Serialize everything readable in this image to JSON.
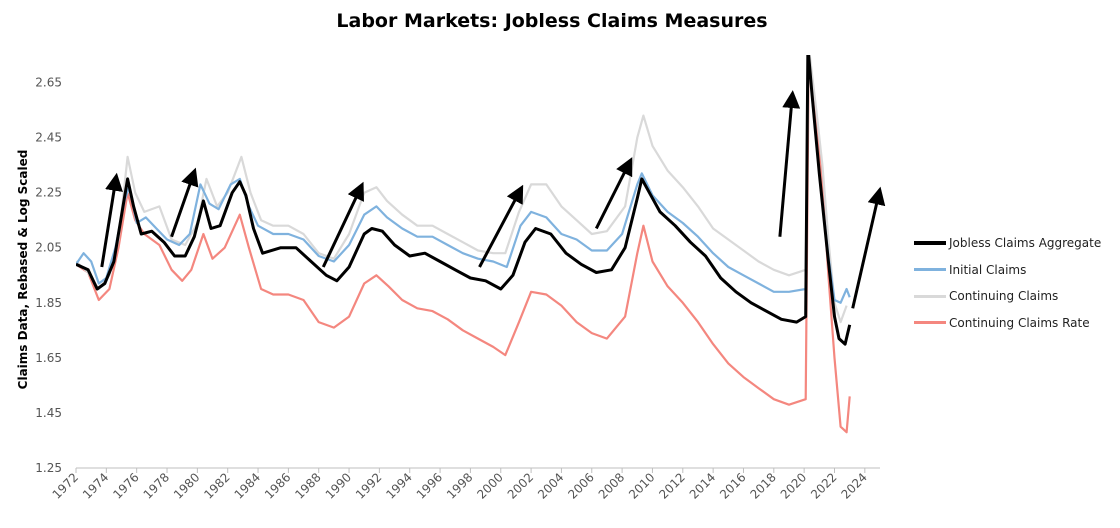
{
  "chart_data": {
    "type": "line",
    "title": "Labor Markets: Jobless Claims Measures",
    "xlabel": "",
    "ylabel": "Claims Data, Rebased & Log Scaled",
    "ylim": [
      1.25,
      2.75
    ],
    "yticks": [
      "1.25",
      "1.45",
      "1.65",
      "1.85",
      "2.05",
      "2.25",
      "2.45",
      "2.65"
    ],
    "xlim": [
      1972,
      2025
    ],
    "xticks": [
      "1972",
      "1974",
      "1976",
      "1978",
      "1980",
      "1982",
      "1984",
      "1986",
      "1988",
      "1990",
      "1992",
      "1994",
      "1996",
      "1998",
      "2000",
      "2002",
      "2004",
      "2006",
      "2008",
      "2010",
      "2012",
      "2014",
      "2016",
      "2018",
      "2020",
      "2022",
      "2024"
    ],
    "grid": false,
    "legend_position": "right",
    "series": [
      {
        "name": "Jobless Claims Aggregate",
        "color": "#000000",
        "width": 3,
        "points": [
          [
            1972.0,
            1.99
          ],
          [
            1972.8,
            1.97
          ],
          [
            1973.4,
            1.9
          ],
          [
            1973.9,
            1.92
          ],
          [
            1974.5,
            2.0
          ],
          [
            1975.1,
            2.2
          ],
          [
            1975.4,
            2.3
          ],
          [
            1975.8,
            2.2
          ],
          [
            1976.3,
            2.1
          ],
          [
            1977.0,
            2.11
          ],
          [
            1977.8,
            2.07
          ],
          [
            1978.5,
            2.02
          ],
          [
            1979.2,
            2.02
          ],
          [
            1979.8,
            2.09
          ],
          [
            1980.4,
            2.22
          ],
          [
            1980.9,
            2.12
          ],
          [
            1981.5,
            2.13
          ],
          [
            1982.3,
            2.25
          ],
          [
            1982.8,
            2.29
          ],
          [
            1983.2,
            2.24
          ],
          [
            1983.7,
            2.12
          ],
          [
            1984.3,
            2.03
          ],
          [
            1985.5,
            2.05
          ],
          [
            1986.5,
            2.05
          ],
          [
            1987.5,
            2.0
          ],
          [
            1988.5,
            1.95
          ],
          [
            1989.2,
            1.93
          ],
          [
            1990.0,
            1.98
          ],
          [
            1991.0,
            2.1
          ],
          [
            1991.5,
            2.12
          ],
          [
            1992.2,
            2.11
          ],
          [
            1993.0,
            2.06
          ],
          [
            1994.0,
            2.02
          ],
          [
            1995.0,
            2.03
          ],
          [
            1996.0,
            2.0
          ],
          [
            1997.0,
            1.97
          ],
          [
            1998.0,
            1.94
          ],
          [
            1999.0,
            1.93
          ],
          [
            2000.0,
            1.9
          ],
          [
            2000.8,
            1.95
          ],
          [
            2001.6,
            2.07
          ],
          [
            2002.3,
            2.12
          ],
          [
            2003.3,
            2.1
          ],
          [
            2004.3,
            2.03
          ],
          [
            2005.3,
            1.99
          ],
          [
            2006.3,
            1.96
          ],
          [
            2007.3,
            1.97
          ],
          [
            2008.2,
            2.05
          ],
          [
            2009.0,
            2.23
          ],
          [
            2009.3,
            2.3
          ],
          [
            2009.8,
            2.25
          ],
          [
            2010.5,
            2.18
          ],
          [
            2011.5,
            2.13
          ],
          [
            2012.5,
            2.07
          ],
          [
            2013.5,
            2.02
          ],
          [
            2014.5,
            1.94
          ],
          [
            2015.5,
            1.89
          ],
          [
            2016.5,
            1.85
          ],
          [
            2017.5,
            1.82
          ],
          [
            2018.5,
            1.79
          ],
          [
            2019.5,
            1.78
          ],
          [
            2020.1,
            1.8
          ],
          [
            2020.25,
            2.78
          ],
          [
            2020.5,
            2.62
          ],
          [
            2021.0,
            2.32
          ],
          [
            2021.6,
            2.0
          ],
          [
            2022.0,
            1.8
          ],
          [
            2022.3,
            1.72
          ],
          [
            2022.7,
            1.7
          ],
          [
            2023.0,
            1.77
          ]
        ]
      },
      {
        "name": "Initial Claims",
        "color": "#7fb2de",
        "width": 2.2,
        "points": [
          [
            1972.0,
            1.99
          ],
          [
            1972.5,
            2.03
          ],
          [
            1973.0,
            2.0
          ],
          [
            1973.5,
            1.92
          ],
          [
            1974.0,
            1.94
          ],
          [
            1974.6,
            2.05
          ],
          [
            1975.2,
            2.22
          ],
          [
            1975.5,
            2.27
          ],
          [
            1976.0,
            2.14
          ],
          [
            1976.6,
            2.16
          ],
          [
            1977.3,
            2.12
          ],
          [
            1978.0,
            2.08
          ],
          [
            1978.8,
            2.06
          ],
          [
            1979.5,
            2.1
          ],
          [
            1980.2,
            2.28
          ],
          [
            1980.8,
            2.21
          ],
          [
            1981.4,
            2.19
          ],
          [
            1982.2,
            2.28
          ],
          [
            1982.8,
            2.3
          ],
          [
            1983.4,
            2.2
          ],
          [
            1984.0,
            2.13
          ],
          [
            1985.0,
            2.1
          ],
          [
            1986.0,
            2.1
          ],
          [
            1987.0,
            2.08
          ],
          [
            1988.0,
            2.02
          ],
          [
            1989.0,
            2.0
          ],
          [
            1990.0,
            2.06
          ],
          [
            1991.0,
            2.17
          ],
          [
            1991.8,
            2.2
          ],
          [
            1992.5,
            2.16
          ],
          [
            1993.5,
            2.12
          ],
          [
            1994.5,
            2.09
          ],
          [
            1995.5,
            2.09
          ],
          [
            1996.5,
            2.06
          ],
          [
            1997.5,
            2.03
          ],
          [
            1998.5,
            2.01
          ],
          [
            1999.5,
            2.0
          ],
          [
            2000.4,
            1.98
          ],
          [
            2001.3,
            2.13
          ],
          [
            2002.0,
            2.18
          ],
          [
            2003.0,
            2.16
          ],
          [
            2004.0,
            2.1
          ],
          [
            2005.0,
            2.08
          ],
          [
            2006.0,
            2.04
          ],
          [
            2007.0,
            2.04
          ],
          [
            2008.0,
            2.1
          ],
          [
            2009.0,
            2.28
          ],
          [
            2009.3,
            2.32
          ],
          [
            2010.0,
            2.24
          ],
          [
            2011.0,
            2.18
          ],
          [
            2012.0,
            2.14
          ],
          [
            2013.0,
            2.09
          ],
          [
            2014.0,
            2.03
          ],
          [
            2015.0,
            1.98
          ],
          [
            2016.0,
            1.95
          ],
          [
            2017.0,
            1.92
          ],
          [
            2018.0,
            1.89
          ],
          [
            2019.0,
            1.89
          ],
          [
            2020.1,
            1.9
          ],
          [
            2020.25,
            2.78
          ],
          [
            2020.6,
            2.55
          ],
          [
            2021.0,
            2.32
          ],
          [
            2021.6,
            2.02
          ],
          [
            2022.0,
            1.86
          ],
          [
            2022.4,
            1.85
          ],
          [
            2022.8,
            1.9
          ],
          [
            2023.0,
            1.87
          ]
        ]
      },
      {
        "name": "Continuing Claims",
        "color": "#d9d9d9",
        "width": 2.2,
        "points": [
          [
            1972.0,
            2.0
          ],
          [
            1972.8,
            1.96
          ],
          [
            1973.5,
            1.9
          ],
          [
            1974.2,
            1.95
          ],
          [
            1974.8,
            2.08
          ],
          [
            1975.4,
            2.38
          ],
          [
            1975.9,
            2.25
          ],
          [
            1976.5,
            2.18
          ],
          [
            1977.5,
            2.2
          ],
          [
            1978.3,
            2.08
          ],
          [
            1979.2,
            2.06
          ],
          [
            1980.0,
            2.14
          ],
          [
            1980.6,
            2.3
          ],
          [
            1981.3,
            2.2
          ],
          [
            1982.0,
            2.25
          ],
          [
            1982.9,
            2.38
          ],
          [
            1983.5,
            2.25
          ],
          [
            1984.2,
            2.15
          ],
          [
            1985.0,
            2.13
          ],
          [
            1986.0,
            2.13
          ],
          [
            1987.0,
            2.1
          ],
          [
            1988.0,
            2.03
          ],
          [
            1989.0,
            2.01
          ],
          [
            1990.0,
            2.1
          ],
          [
            1991.0,
            2.25
          ],
          [
            1991.8,
            2.27
          ],
          [
            1992.5,
            2.22
          ],
          [
            1993.5,
            2.17
          ],
          [
            1994.5,
            2.13
          ],
          [
            1995.5,
            2.13
          ],
          [
            1996.5,
            2.1
          ],
          [
            1997.5,
            2.07
          ],
          [
            1998.5,
            2.04
          ],
          [
            1999.5,
            2.03
          ],
          [
            2000.3,
            2.03
          ],
          [
            2001.2,
            2.18
          ],
          [
            2002.0,
            2.28
          ],
          [
            2003.0,
            2.28
          ],
          [
            2004.0,
            2.2
          ],
          [
            2005.0,
            2.15
          ],
          [
            2006.0,
            2.1
          ],
          [
            2007.0,
            2.11
          ],
          [
            2008.2,
            2.2
          ],
          [
            2009.0,
            2.45
          ],
          [
            2009.4,
            2.53
          ],
          [
            2010.0,
            2.42
          ],
          [
            2011.0,
            2.33
          ],
          [
            2012.0,
            2.27
          ],
          [
            2013.0,
            2.2
          ],
          [
            2014.0,
            2.12
          ],
          [
            2015.0,
            2.08
          ],
          [
            2016.0,
            2.04
          ],
          [
            2017.0,
            2.0
          ],
          [
            2018.0,
            1.97
          ],
          [
            2019.0,
            1.95
          ],
          [
            2020.1,
            1.97
          ],
          [
            2020.3,
            2.78
          ],
          [
            2020.8,
            2.55
          ],
          [
            2021.2,
            2.35
          ],
          [
            2021.6,
            2.08
          ],
          [
            2022.0,
            1.85
          ],
          [
            2022.4,
            1.78
          ],
          [
            2022.8,
            1.84
          ]
        ]
      },
      {
        "name": "Continuing Claims Rate",
        "color": "#f4877f",
        "width": 2.2,
        "points": [
          [
            1972.0,
            1.99
          ],
          [
            1972.8,
            1.96
          ],
          [
            1973.5,
            1.86
          ],
          [
            1974.2,
            1.9
          ],
          [
            1974.8,
            2.05
          ],
          [
            1975.4,
            2.25
          ],
          [
            1975.9,
            2.15
          ],
          [
            1976.5,
            2.1
          ],
          [
            1977.5,
            2.06
          ],
          [
            1978.3,
            1.97
          ],
          [
            1979.0,
            1.93
          ],
          [
            1979.6,
            1.97
          ],
          [
            1980.4,
            2.1
          ],
          [
            1981.0,
            2.01
          ],
          [
            1981.8,
            2.05
          ],
          [
            1982.8,
            2.17
          ],
          [
            1983.4,
            2.05
          ],
          [
            1984.2,
            1.9
          ],
          [
            1985.0,
            1.88
          ],
          [
            1986.0,
            1.88
          ],
          [
            1987.0,
            1.86
          ],
          [
            1988.0,
            1.78
          ],
          [
            1989.0,
            1.76
          ],
          [
            1990.0,
            1.8
          ],
          [
            1991.0,
            1.92
          ],
          [
            1991.8,
            1.95
          ],
          [
            1992.6,
            1.91
          ],
          [
            1993.5,
            1.86
          ],
          [
            1994.5,
            1.83
          ],
          [
            1995.5,
            1.82
          ],
          [
            1996.5,
            1.79
          ],
          [
            1997.5,
            1.75
          ],
          [
            1998.5,
            1.72
          ],
          [
            1999.5,
            1.69
          ],
          [
            2000.3,
            1.66
          ],
          [
            2001.2,
            1.78
          ],
          [
            2002.0,
            1.89
          ],
          [
            2003.0,
            1.88
          ],
          [
            2004.0,
            1.84
          ],
          [
            2005.0,
            1.78
          ],
          [
            2006.0,
            1.74
          ],
          [
            2007.0,
            1.72
          ],
          [
            2008.2,
            1.8
          ],
          [
            2009.0,
            2.03
          ],
          [
            2009.4,
            2.13
          ],
          [
            2010.0,
            2.0
          ],
          [
            2011.0,
            1.91
          ],
          [
            2012.0,
            1.85
          ],
          [
            2013.0,
            1.78
          ],
          [
            2014.0,
            1.7
          ],
          [
            2015.0,
            1.63
          ],
          [
            2016.0,
            1.58
          ],
          [
            2017.0,
            1.54
          ],
          [
            2018.0,
            1.5
          ],
          [
            2019.0,
            1.48
          ],
          [
            2020.1,
            1.5
          ],
          [
            2020.3,
            2.74
          ],
          [
            2020.8,
            2.5
          ],
          [
            2021.2,
            2.28
          ],
          [
            2021.6,
            1.95
          ],
          [
            2022.0,
            1.65
          ],
          [
            2022.4,
            1.4
          ],
          [
            2022.8,
            1.38
          ],
          [
            2023.0,
            1.51
          ]
        ]
      }
    ],
    "arrows": [
      {
        "from": [
          1973.7,
          1.98
        ],
        "to": [
          1974.6,
          2.29
        ]
      },
      {
        "from": [
          1978.3,
          2.09
        ],
        "to": [
          1979.7,
          2.31
        ]
      },
      {
        "from": [
          1988.3,
          1.98
        ],
        "to": [
          1990.7,
          2.26
        ]
      },
      {
        "from": [
          1998.6,
          1.98
        ],
        "to": [
          2001.2,
          2.25
        ]
      },
      {
        "from": [
          2006.3,
          2.12
        ],
        "to": [
          2008.4,
          2.35
        ]
      },
      {
        "from": [
          2018.4,
          2.09
        ],
        "to": [
          2019.2,
          2.59
        ]
      },
      {
        "from": [
          2023.2,
          1.83
        ],
        "to": [
          2024.9,
          2.24
        ]
      }
    ]
  }
}
